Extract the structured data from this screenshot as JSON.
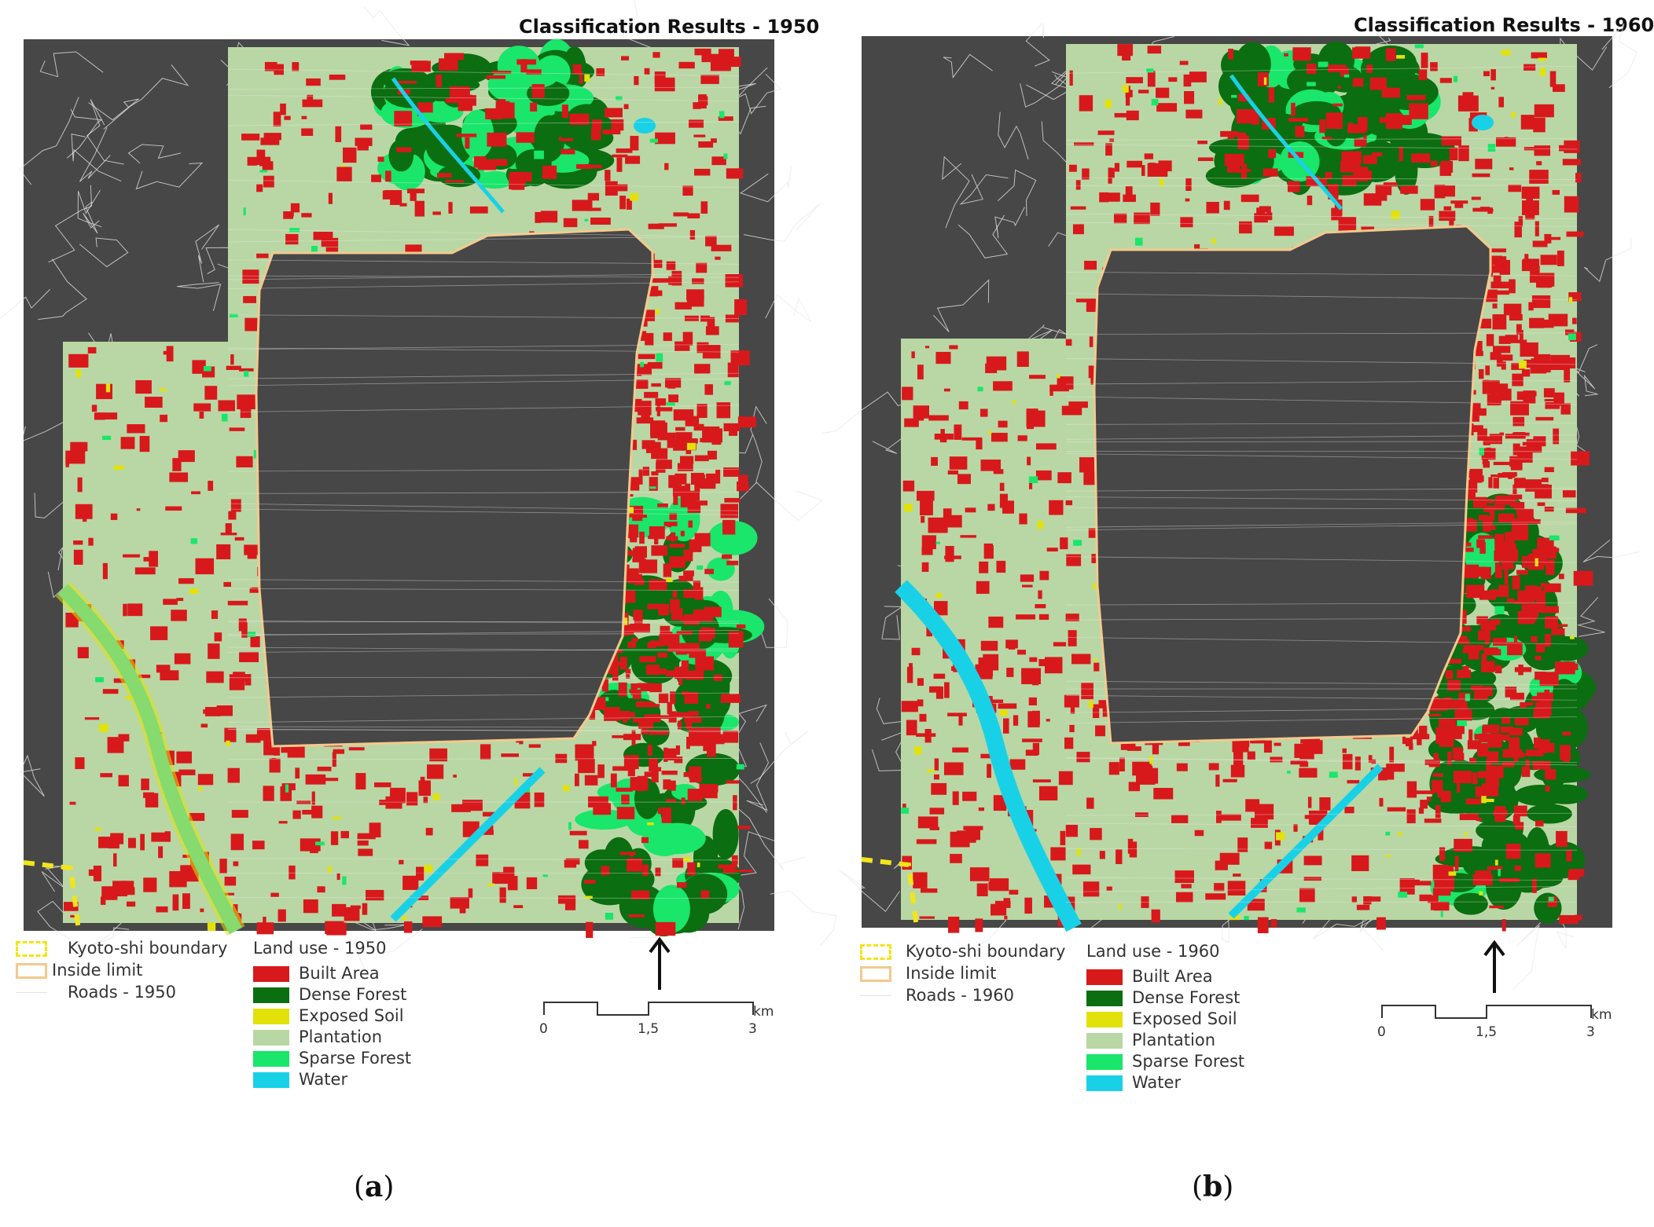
{
  "panels": [
    {
      "id": "a",
      "title": "Classification Results - 1950",
      "caption_letter": "a",
      "legend_left": {
        "boundary": "Kyoto-shi boundary",
        "inside_limit": "Inside limit",
        "roads": "Roads - 1950"
      },
      "land_use": {
        "heading": "Land use - 1950",
        "classes": [
          "Built Area",
          "Dense Forest",
          "Exposed Soil",
          "Plantation",
          "Sparse Forest",
          "Water"
        ]
      },
      "scale": {
        "labels": [
          "0",
          "1,5",
          "3"
        ],
        "unit": "km"
      }
    },
    {
      "id": "b",
      "title": "Classification Results - 1960",
      "caption_letter": "b",
      "legend_left": {
        "boundary": "Kyoto-shi boundary",
        "inside_limit": "Inside limit",
        "roads": "Roads - 1960"
      },
      "land_use": {
        "heading": "Land use - 1960",
        "classes": [
          "Built Area",
          "Dense Forest",
          "Exposed Soil",
          "Plantation",
          "Sparse Forest",
          "Water"
        ]
      },
      "scale": {
        "labels": [
          "0",
          "1,5",
          "3"
        ],
        "unit": "km"
      }
    }
  ],
  "colors": {
    "built_area": "#d7191c",
    "dense_forest": "#0b6e10",
    "exposed_soil": "#e2e20a",
    "plantation": "#b9d7a4",
    "sparse_forest": "#19e66a",
    "water": "#19d1e6",
    "background": "#474747",
    "roads": "#e8e8e8",
    "boundary": "#f2e51a",
    "inside_limit": "#f3c98d"
  }
}
